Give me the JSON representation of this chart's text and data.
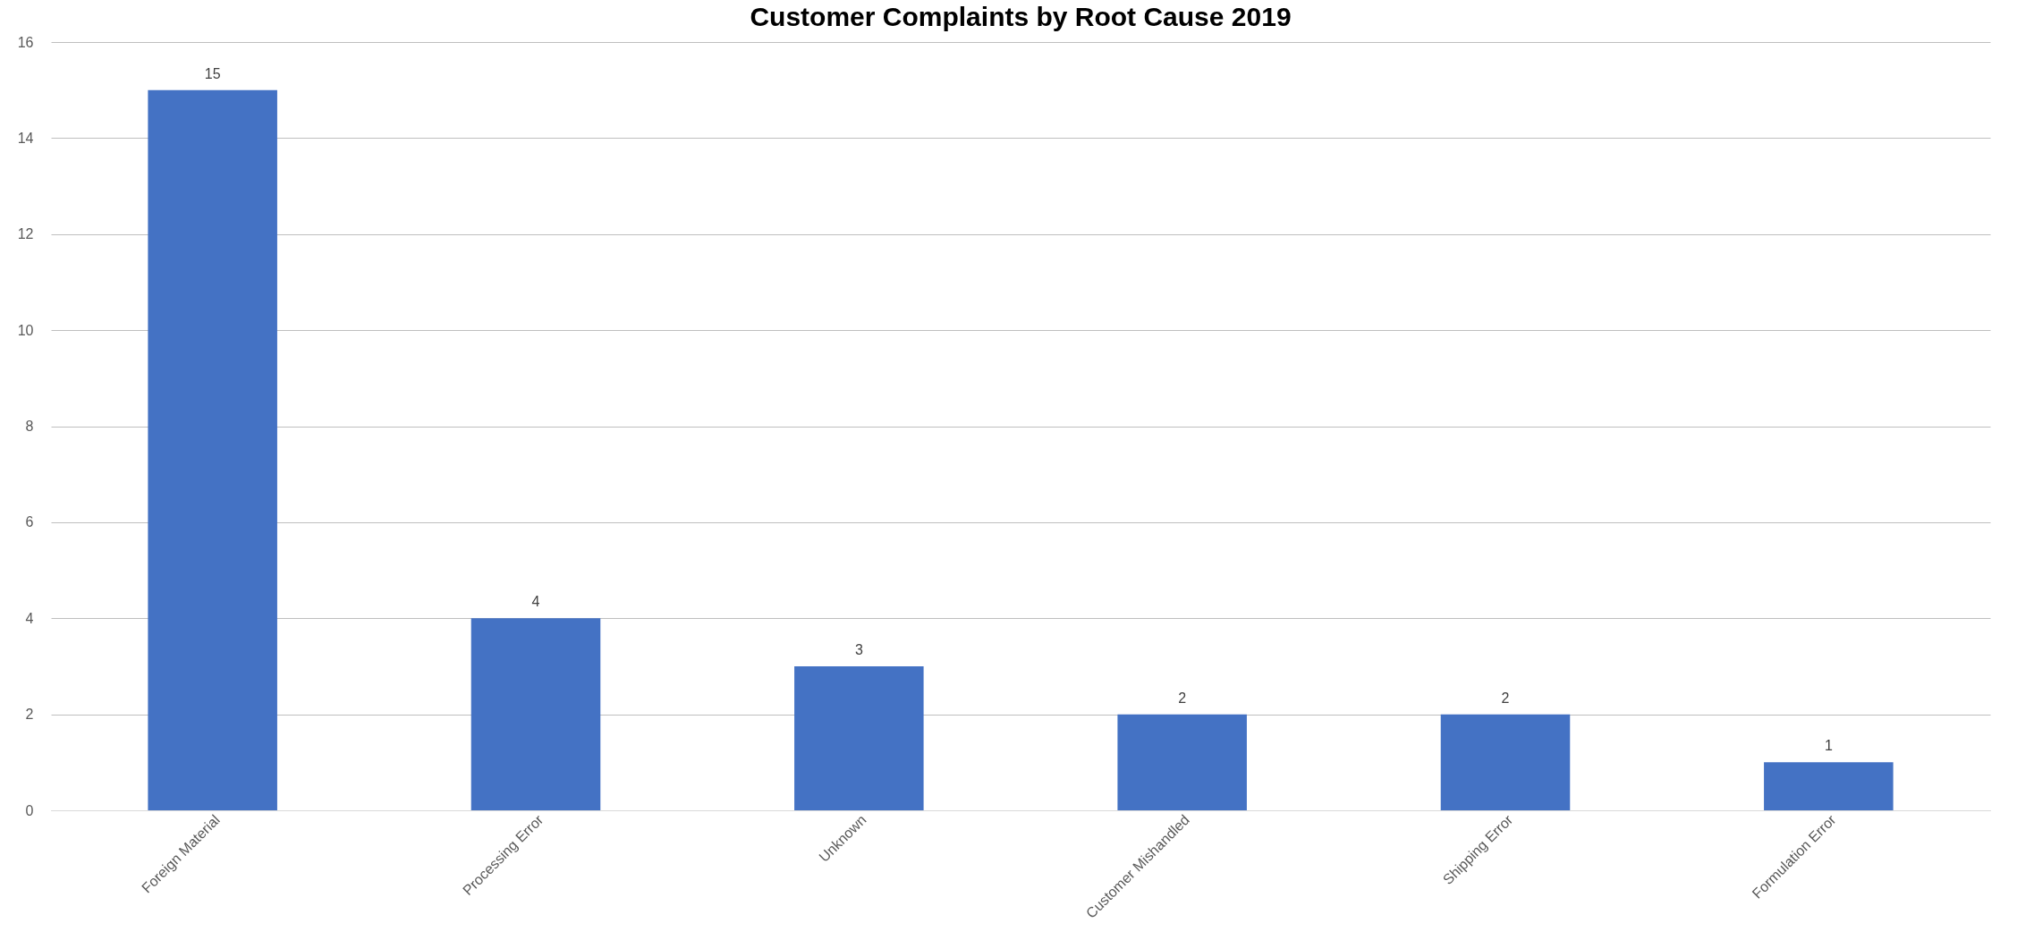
{
  "chart_data": {
    "type": "bar",
    "title": "Customer Complaints by Root Cause 2019",
    "categories": [
      "Foreign Material",
      "Processing Error",
      "Unknown",
      "Customer Mishandled",
      "Shipping Error",
      "Formulation Error"
    ],
    "values": [
      15,
      4,
      3,
      2,
      2,
      1
    ],
    "color": "#4472c4",
    "ylim": [
      0,
      16
    ],
    "yticks": [
      0,
      2,
      4,
      6,
      8,
      10,
      12,
      14,
      16
    ],
    "grid": "y",
    "data_labels": true
  }
}
